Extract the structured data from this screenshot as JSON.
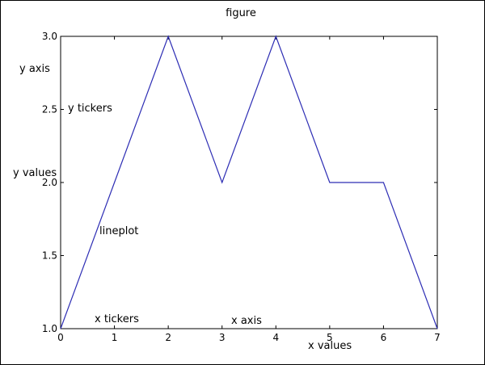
{
  "chart_data": {
    "type": "line",
    "title": "figure",
    "x": [
      0,
      1,
      2,
      3,
      4,
      5,
      6,
      7
    ],
    "series": [
      {
        "values": [
          1.0,
          2.0,
          3.0,
          2.0,
          3.0,
          2.0,
          2.0,
          1.0
        ]
      }
    ],
    "xlim": [
      0,
      7
    ],
    "ylim": [
      1.0,
      3.0
    ],
    "xticks": [
      "0",
      "1",
      "2",
      "3",
      "4",
      "5",
      "6",
      "7"
    ],
    "yticks": [
      "1.0",
      "1.5",
      "2.0",
      "2.5",
      "3.0"
    ],
    "grid": false,
    "line_color": "#2d2db4",
    "annotations": {
      "y_axis": "y axis",
      "y_tickers": "y tickers",
      "y_values": "y values",
      "lineplot": "lineplot",
      "x_tickers": "x tickers",
      "x_axis": "x axis",
      "x_values": "x values"
    }
  }
}
